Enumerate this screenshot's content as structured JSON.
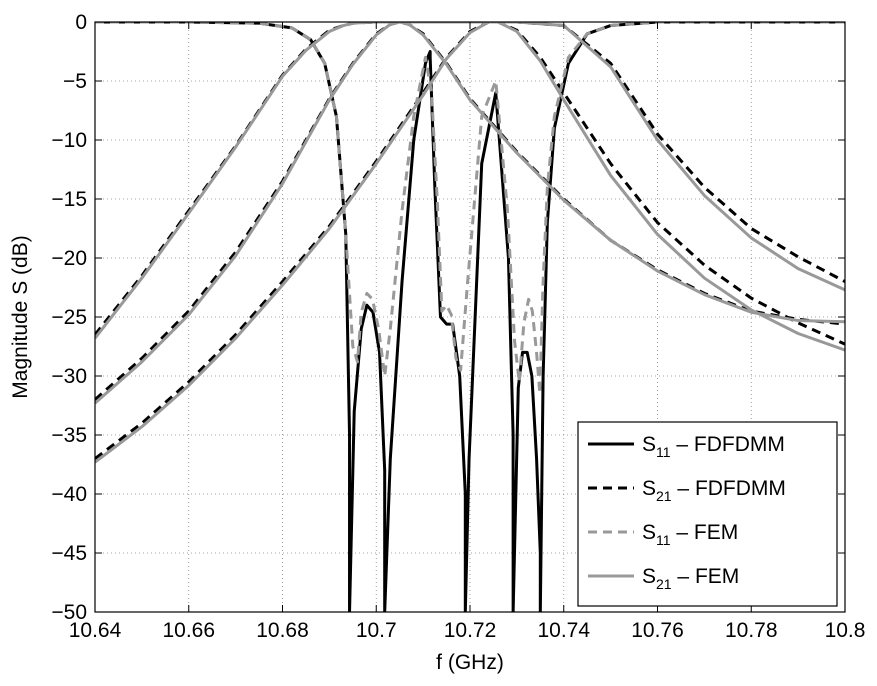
{
  "chart_data": {
    "type": "line",
    "title": "",
    "xlabel": "f (GHz)",
    "ylabel": "Magnitude S (dB)",
    "xlim": [
      10.64,
      10.8
    ],
    "ylim": [
      -50,
      0
    ],
    "x_ticks": [
      10.64,
      10.66,
      10.68,
      10.7,
      10.72,
      10.74,
      10.76,
      10.78,
      10.8
    ],
    "x_tick_labels": [
      "10.64",
      "10.66",
      "10.68",
      "10.7",
      "10.72",
      "10.74",
      "10.76",
      "10.78",
      "10.8"
    ],
    "y_ticks": [
      0,
      -5,
      -10,
      -15,
      -20,
      -25,
      -30,
      -35,
      -40,
      -45,
      -50
    ],
    "y_tick_labels": [
      "0",
      "−5",
      "−10",
      "−15",
      "−20",
      "−25",
      "−30",
      "−35",
      "−40",
      "−45",
      "−50"
    ],
    "grid": true,
    "legend_position": "bottom-right",
    "legend": [
      {
        "main": "S",
        "sub": "11",
        "rest": " – FDFDMM",
        "color": "#000000",
        "dashed": false
      },
      {
        "main": "S",
        "sub": "21",
        "rest": " – FDFDMM",
        "color": "#000000",
        "dashed": true
      },
      {
        "main": "S",
        "sub": "11",
        "rest": " – FEM",
        "color": "#999999",
        "dashed": true
      },
      {
        "main": "S",
        "sub": "21",
        "rest": " – FEM",
        "color": "#999999",
        "dashed": false
      }
    ],
    "series": [
      {
        "name": "S11 – FDFDMM",
        "color": "#000000",
        "dashed": false,
        "trace": 1,
        "x": [
          10.64,
          10.66,
          10.675,
          10.682,
          10.686,
          10.689,
          10.6915,
          10.6935,
          10.6943,
          10.6943,
          10.6953,
          10.6968,
          10.698,
          10.6993,
          10.7007,
          10.7018,
          10.7018,
          10.703,
          10.7055,
          10.708,
          10.7105,
          10.7115,
          10.7115,
          10.7125,
          10.7137,
          10.715,
          10.7163,
          10.7178,
          10.719,
          10.719,
          10.7198,
          10.7225,
          10.7255,
          10.7282,
          10.7292,
          10.7292,
          10.7303,
          10.7312,
          10.7322,
          10.7332,
          10.7342,
          10.735,
          10.735,
          10.7356,
          10.7365,
          10.738,
          10.741,
          10.745,
          10.75,
          10.76,
          10.78,
          10.8
        ],
        "y": [
          0,
          0,
          -0.1,
          -0.5,
          -1.5,
          -3.5,
          -8,
          -18,
          -35,
          -50,
          -33,
          -26,
          -24,
          -24.6,
          -28,
          -38,
          -50,
          -37,
          -22,
          -10,
          -3.5,
          -2.5,
          -3,
          -14,
          -25,
          -25.6,
          -25.6,
          -30,
          -40,
          -50,
          -37,
          -12,
          -6,
          -20,
          -35,
          -50,
          -31,
          -28,
          -28,
          -30,
          -37,
          -45,
          -50,
          -30,
          -17,
          -9,
          -3.5,
          -1,
          -0.3,
          0,
          0,
          0
        ]
      },
      {
        "name": "S11 – FEM",
        "color": "#999999",
        "dashed": true,
        "trace": 2,
        "x": [
          10.64,
          10.66,
          10.675,
          10.682,
          10.686,
          10.689,
          10.6915,
          10.6935,
          10.695,
          10.696,
          10.6968,
          10.698,
          10.6992,
          10.7005,
          10.7018,
          10.703,
          10.7055,
          10.708,
          10.7105,
          10.7118,
          10.713,
          10.714,
          10.715,
          10.716,
          10.717,
          10.718,
          10.7195,
          10.7225,
          10.7255,
          10.728,
          10.7295,
          10.7305,
          10.7315,
          10.7325,
          10.7333,
          10.7342,
          10.7349,
          10.7356,
          10.7365,
          10.738,
          10.741,
          10.745,
          10.75,
          10.76,
          10.78,
          10.8
        ],
        "y": [
          0,
          0,
          -0.1,
          -0.5,
          -1.5,
          -3.5,
          -8,
          -18,
          -27.5,
          -28.8,
          -24.6,
          -23,
          -23.5,
          -26,
          -30,
          -26,
          -16,
          -8,
          -3,
          -6,
          -15,
          -24.5,
          -24,
          -24.8,
          -28.5,
          -29.5,
          -22,
          -8,
          -5,
          -16,
          -27,
          -30.5,
          -25.5,
          -23.5,
          -24.5,
          -28,
          -31.5,
          -22,
          -14,
          -8,
          -3,
          -1,
          -0.3,
          0,
          0,
          0
        ]
      },
      {
        "name": "S21 – FDFDMM",
        "color": "#000000",
        "dashed": true,
        "trace": 1,
        "x": [
          10.64,
          10.65,
          10.66,
          10.67,
          10.68,
          10.685,
          10.69,
          10.693,
          10.695,
          10.7,
          10.705,
          10.71,
          10.72,
          10.73,
          10.74,
          10.75,
          10.76,
          10.77,
          10.78,
          10.79,
          10.8
        ],
        "y": [
          -26.5,
          -21.5,
          -16,
          -10.5,
          -4.5,
          -2.3,
          -0.7,
          -0.3,
          -0.1,
          0,
          0,
          0,
          0,
          0,
          -0.3,
          -3.5,
          -9.5,
          -14,
          -17.5,
          -19.9,
          -22
        ]
      },
      {
        "name": "S21 – FEM",
        "color": "#999999",
        "dashed": false,
        "trace": 2,
        "x": [
          10.64,
          10.65,
          10.66,
          10.67,
          10.68,
          10.685,
          10.69,
          10.693,
          10.695,
          10.7,
          10.705,
          10.71,
          10.72,
          10.73,
          10.74,
          10.75,
          10.76,
          10.77,
          10.78,
          10.79,
          10.8
        ],
        "y": [
          -26.8,
          -21.7,
          -16.2,
          -10.6,
          -4.6,
          -2.4,
          -0.8,
          -0.3,
          -0.1,
          0,
          0,
          0,
          0,
          0,
          -0.3,
          -3.8,
          -10,
          -14.7,
          -18.3,
          -20.9,
          -22.7
        ]
      },
      {
        "name": "S21 – FDFDMM",
        "color": "#000000",
        "dashed": true,
        "trace": 1,
        "x": [
          10.64,
          10.65,
          10.66,
          10.67,
          10.68,
          10.69,
          10.695,
          10.7,
          10.703,
          10.705,
          10.707,
          10.71,
          10.715,
          10.72,
          10.73,
          10.74,
          10.75,
          10.76,
          10.77,
          10.78,
          10.79,
          10.8
        ],
        "y": [
          -32,
          -28.5,
          -24.5,
          -19.5,
          -13.5,
          -6.5,
          -3.5,
          -1,
          -0.2,
          0,
          -0.2,
          -1,
          -3.5,
          -6.5,
          -11,
          -15,
          -18.5,
          -21,
          -23,
          -24.5,
          -25.2,
          -25.6
        ]
      },
      {
        "name": "S21 – FEM",
        "color": "#999999",
        "dashed": false,
        "trace": 2,
        "x": [
          10.64,
          10.65,
          10.66,
          10.67,
          10.68,
          10.69,
          10.695,
          10.7,
          10.703,
          10.705,
          10.707,
          10.71,
          10.715,
          10.72,
          10.73,
          10.74,
          10.75,
          10.76,
          10.77,
          10.78,
          10.79,
          10.8
        ],
        "y": [
          -32.3,
          -28.8,
          -24.8,
          -19.8,
          -13.7,
          -6.6,
          -3.6,
          -1.1,
          -0.2,
          0,
          -0.2,
          -1.1,
          -3.6,
          -6.6,
          -11.1,
          -15.1,
          -18.5,
          -21.1,
          -23.1,
          -24.6,
          -25.3,
          -25.4
        ]
      },
      {
        "name": "S21 – FDFDMM",
        "color": "#000000",
        "dashed": true,
        "trace": 1,
        "x": [
          10.64,
          10.65,
          10.66,
          10.67,
          10.68,
          10.69,
          10.7,
          10.71,
          10.715,
          10.72,
          10.724,
          10.726,
          10.73,
          10.735,
          10.74,
          10.75,
          10.76,
          10.77,
          10.78,
          10.79,
          10.8
        ],
        "y": [
          -37,
          -34,
          -30.5,
          -26.5,
          -22,
          -17.3,
          -11.8,
          -6,
          -3,
          -0.8,
          0,
          0,
          -0.7,
          -3,
          -6,
          -12,
          -17,
          -20.6,
          -23.4,
          -25.5,
          -27.3
        ]
      },
      {
        "name": "S21 – FEM",
        "color": "#999999",
        "dashed": false,
        "trace": 2,
        "x": [
          10.64,
          10.65,
          10.66,
          10.67,
          10.68,
          10.69,
          10.7,
          10.71,
          10.715,
          10.72,
          10.724,
          10.726,
          10.73,
          10.735,
          10.74,
          10.75,
          10.76,
          10.77,
          10.78,
          10.79,
          10.8
        ],
        "y": [
          -37.3,
          -34.3,
          -30.8,
          -26.8,
          -22.3,
          -17.5,
          -12,
          -6.2,
          -3.1,
          -0.9,
          0,
          0,
          -0.8,
          -3.3,
          -6.6,
          -13,
          -18,
          -21.7,
          -24.4,
          -26.4,
          -27.8
        ]
      }
    ]
  }
}
